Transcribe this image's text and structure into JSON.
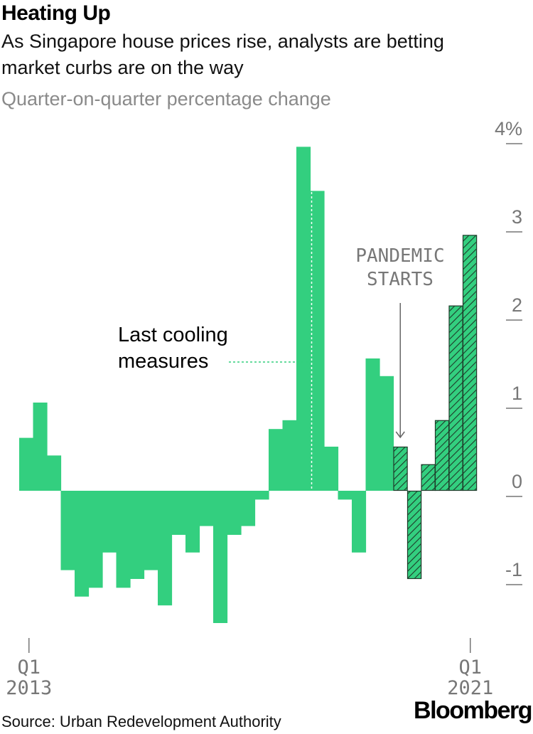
{
  "title": "Heating Up",
  "subtitle": "As Singapore house prices rise, analysts are betting market curbs are on the way",
  "unit_label": "Quarter-on-quarter percentage change",
  "source": "Source: Urban Redevelopment Authority",
  "brand": "Bloomberg",
  "colors": {
    "bar": "#33cf7f",
    "hatch": "#1f3a2a",
    "axis": "#555555",
    "tick_text": "#777777"
  },
  "chart_data": {
    "type": "bar",
    "title": "Heating Up",
    "ylabel": "Quarter-on-quarter percentage change",
    "ylim": [
      -1.5,
      4
    ],
    "y_ticks": [
      4,
      3,
      2,
      1,
      0,
      -1
    ],
    "y_tick_labels": [
      "4%",
      "3",
      "2",
      "1",
      "0",
      "-1"
    ],
    "x_tick_labels": [
      {
        "index": 0,
        "line1": "Q1",
        "line2": "2013"
      },
      {
        "index": 32,
        "line1": "Q1",
        "line2": "2021"
      }
    ],
    "categories": [
      "Q1 2013",
      "Q2 2013",
      "Q3 2013",
      "Q4 2013",
      "Q1 2014",
      "Q2 2014",
      "Q3 2014",
      "Q4 2014",
      "Q1 2015",
      "Q2 2015",
      "Q3 2015",
      "Q4 2015",
      "Q1 2016",
      "Q2 2016",
      "Q3 2016",
      "Q4 2016",
      "Q1 2017",
      "Q2 2017",
      "Q3 2017",
      "Q4 2017",
      "Q1 2018",
      "Q2 2018",
      "Q3 2018",
      "Q4 2018",
      "Q1 2019",
      "Q2 2019",
      "Q3 2019",
      "Q4 2019",
      "Q1 2020",
      "Q2 2020",
      "Q3 2020",
      "Q4 2020",
      "Q1 2021"
    ],
    "values": [
      0.6,
      1.0,
      0.4,
      -0.9,
      -1.2,
      -1.1,
      -0.7,
      -1.1,
      -1.0,
      -0.9,
      -1.3,
      -0.5,
      -0.7,
      -0.4,
      -1.5,
      -0.5,
      -0.4,
      -0.1,
      0.7,
      0.8,
      3.9,
      3.4,
      0.5,
      -0.1,
      -0.7,
      1.5,
      1.3,
      0.5,
      -1.0,
      0.3,
      0.8,
      2.1,
      2.9
    ],
    "pandemic_start_index": 27,
    "annotations": [
      {
        "text_lines": [
          "Last cooling",
          "measures"
        ],
        "target_index": 21
      },
      {
        "text_lines": [
          "PANDEMIC",
          "STARTS"
        ],
        "target_index": 27
      }
    ]
  }
}
